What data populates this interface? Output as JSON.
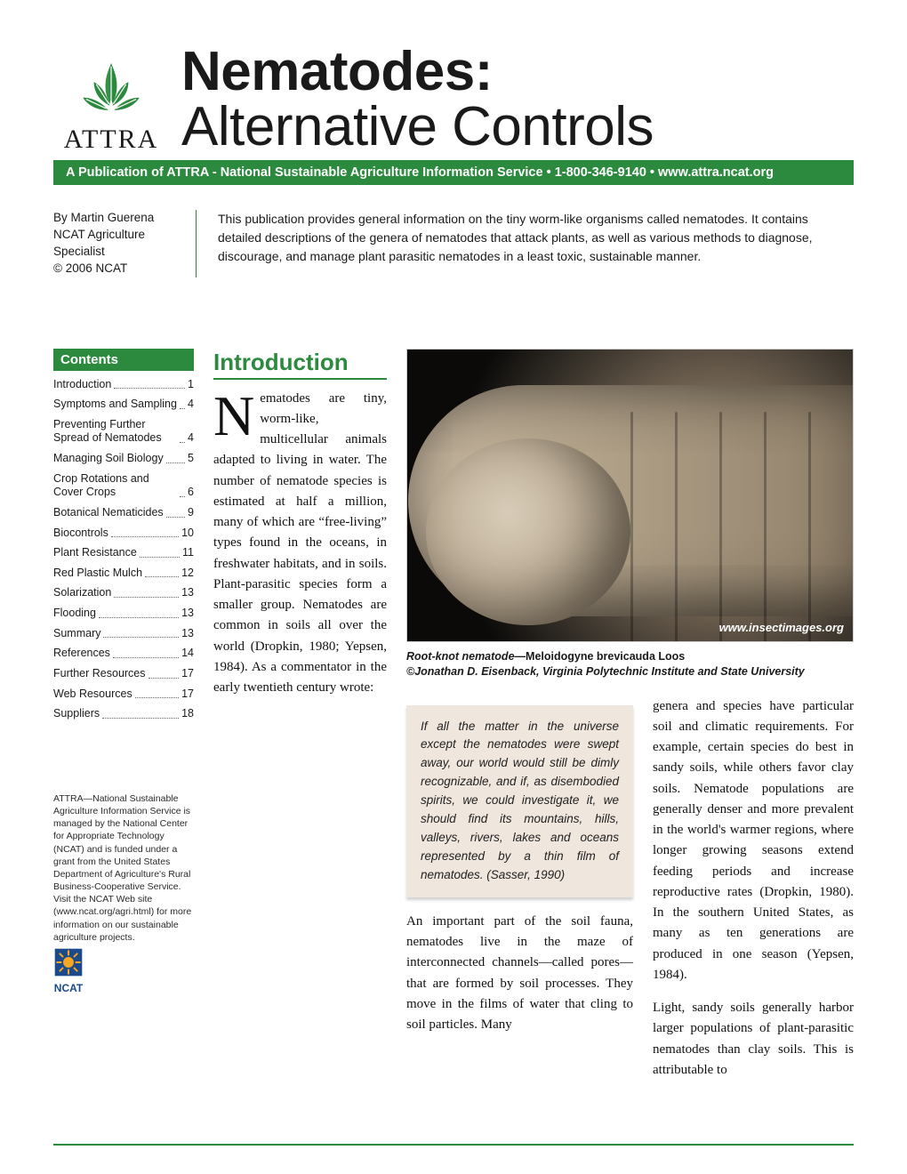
{
  "logo": {
    "brand": "ATTRA",
    "leaf_color": "#2b8a3e"
  },
  "title": {
    "line1": "Nematodes:",
    "line2": "Alternative Controls"
  },
  "banner": "A Publication of ATTRA - National Sustainable Agriculture Information Service  •  1-800-346-9140  •  www.attra.ncat.org",
  "author": {
    "by": "By Martin Guerena",
    "role1": "NCAT Agriculture",
    "role2": "Specialist",
    "copyright": "© 2006 NCAT"
  },
  "abstract": "This publication provides general information on the tiny worm-like organisms called nematodes. It contains detailed descriptions of the genera of nematodes that attack plants, as well as various methods to diagnose, discourage, and manage plant parasitic nematodes in a least toxic, sustainable manner.",
  "contents_label": "Contents",
  "toc": [
    {
      "label": "Introduction",
      "page": "1"
    },
    {
      "label": "Symptoms and Sampling",
      "page": "4"
    },
    {
      "label": "Preventing Further Spread of Nematodes",
      "page": "4"
    },
    {
      "label": "Managing Soil Biology",
      "page": "5"
    },
    {
      "label": "Crop Rotations and Cover Crops",
      "page": "6"
    },
    {
      "label": "Botanical Nematicides",
      "page": "9"
    },
    {
      "label": "Biocontrols",
      "page": "10"
    },
    {
      "label": "Plant Resistance",
      "page": "11"
    },
    {
      "label": "Red Plastic Mulch",
      "page": "12"
    },
    {
      "label": "Solarization",
      "page": "13"
    },
    {
      "label": "Flooding",
      "page": "13"
    },
    {
      "label": "Summary",
      "page": "13"
    },
    {
      "label": "References",
      "page": "14"
    },
    {
      "label": "Further Resources",
      "page": "17"
    },
    {
      "label": "Web Resources",
      "page": "17"
    },
    {
      "label": "Suppliers",
      "page": "18"
    }
  ],
  "attra_note": "ATTRA—National Sustainable Agriculture Information Service is managed by the National Center for Appropriate Technology (NCAT) and is funded under a grant from the United States Department of Agriculture's Rural Business-Cooperative Service. Visit the NCAT Web site (www.ncat.org/agri.html) for more information on our sustainable agriculture projects.",
  "ncat_badge": "NCAT",
  "intro_heading": "Introduction",
  "intro_para": "ematodes are tiny, worm-like, multicellular animals adapted to living in water. The number of nematode species is estimated at half a million, many of which are “free-living” types found in the oceans, in freshwater habitats, and in soils. Plant-parasitic species form a smaller group. Nematodes are common in soils all over the world (Dropkin, 1980; Yepsen, 1984). As a commentator in the early twentieth century wrote:",
  "quote": "If all the matter in the universe except the nematodes were swept away, our world would still be dimly recognizable, and if, as disembodied spirits, we could investigate it, we should find its mountains, hills, valleys, rivers, lakes and oceans represented by a thin film of nematodes. (Sasser, 1990)",
  "after_quote": "An important part of the soil fauna, nematodes live in the maze of interconnected channels—called pores—that are formed by soil processes. They move in the films of water that cling to soil particles. Many",
  "image_credit": "www.insectimages.org",
  "caption": {
    "species_label": "Root-knot nematode",
    "species": "—Meloidogyne brevicauda Loos",
    "credit": "©Jonathan D. Eisenback, Virginia Polytechnic Institute and State University"
  },
  "right_para1": "genera and species have particular soil and climatic requirements. For example, certain species do best in sandy soils, while others favor clay soils. Nematode populations are generally denser and more prevalent in the world's warmer regions, where longer growing seasons extend feeding periods and increase reproductive rates (Dropkin, 1980). In the southern United States, as many as ten generations are produced in one season (Yepsen, 1984).",
  "right_para2": "Light, sandy soils generally harbor larger populations of plant-parasitic nematodes than clay soils. This is attributable to",
  "colors": {
    "green": "#2b8a3e",
    "quote_bg": "#efe6dd",
    "ncat_blue": "#1a4a8a"
  }
}
